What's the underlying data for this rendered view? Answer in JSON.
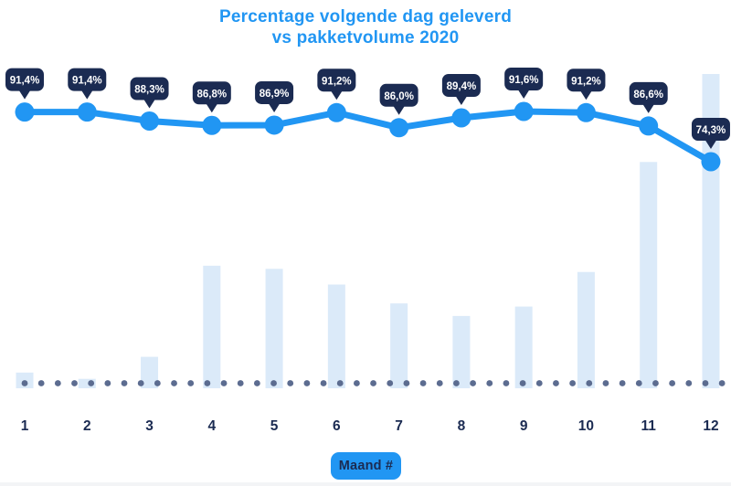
{
  "title": {
    "line1": "Percentage volgende dag geleverd",
    "line2": "vs pakketvolume 2020"
  },
  "xaxis": {
    "label_badge": "Maand #",
    "tick_labels": [
      "1",
      "2",
      "3",
      "4",
      "5",
      "6",
      "7",
      "8",
      "9",
      "10",
      "11",
      "12"
    ]
  },
  "colors": {
    "accent_blue": "#2196F3",
    "navy": "#1B2B52",
    "bar_fill": "#DBEAF9",
    "dot_fill": "#5C6C90",
    "badge_text": "#FFFFFF",
    "background": "#FFFFFF"
  },
  "chart_data": {
    "type": "combo",
    "title": "Percentage volgende dag geleverd vs pakketvolume 2020",
    "xlabel": "Maand #",
    "categories": [
      "1",
      "2",
      "3",
      "4",
      "5",
      "6",
      "7",
      "8",
      "9",
      "10",
      "11",
      "12"
    ],
    "series": [
      {
        "name": "Percentage volgende dag geleverd",
        "type": "line",
        "unit": "%",
        "values": [
          91.4,
          91.4,
          88.3,
          86.8,
          86.9,
          91.2,
          86.0,
          89.4,
          91.6,
          91.2,
          86.6,
          74.3
        ],
        "point_labels": [
          "91,4%",
          "91,4%",
          "88,3%",
          "86,8%",
          "86,9%",
          "91,2%",
          "86,0%",
          "89,4%",
          "91,6%",
          "91,2%",
          "86,6%",
          "74,3%"
        ]
      },
      {
        "name": "Pakketvolume 2020",
        "type": "bar",
        "unit": "relative volume, % of max (estimated from bar heights; no value axis shown)",
        "values": [
          5,
          3,
          10,
          39,
          38,
          33,
          27,
          23,
          26,
          37,
          72,
          100
        ]
      }
    ],
    "legend": "none",
    "grid": "off",
    "y_axis": "none (values labeled on data points)",
    "annotations": {
      "dotted_baseline": "row of 43 small slate-blue dots along the x-axis baseline"
    }
  }
}
